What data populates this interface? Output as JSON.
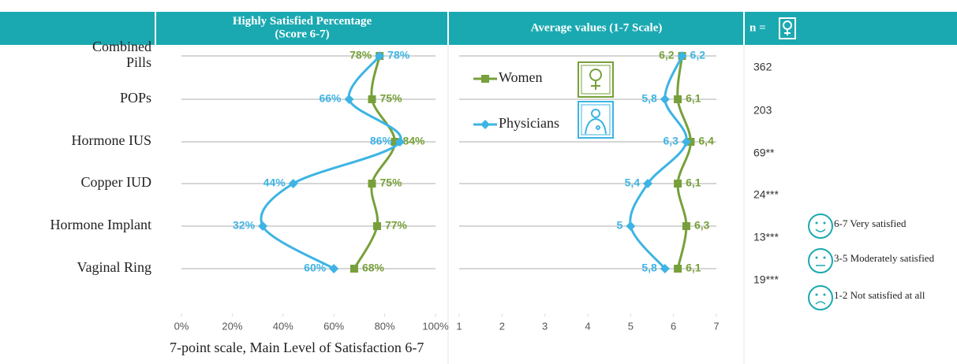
{
  "chart_data": [
    {
      "type": "line",
      "title": "Highly Satisfied Percentage\n(Score 6-7)",
      "categories": [
        "Combined\nPills",
        "POPs",
        "Hormone IUS",
        "Copper IUD",
        "Hormone Implant",
        "Vaginal Ring"
      ],
      "series": [
        {
          "color": "#77a03a",
          "marker": "square",
          "values": [
            78,
            75,
            84,
            75,
            77,
            68
          ],
          "value_labels": [
            "78%",
            "75%",
            "84%",
            "75%",
            "77%",
            "68%"
          ]
        },
        {
          "color": "#3db4e4",
          "marker": "diamond",
          "values": [
            78,
            66,
            86,
            44,
            32,
            60
          ],
          "value_labels": [
            "78%",
            "66%",
            "86%",
            "44%",
            "32%",
            "60%"
          ]
        }
      ],
      "xlim": [
        0,
        100
      ],
      "xticks": [
        {
          "value": 0,
          "label": "0%"
        },
        {
          "value": 20,
          "label": "20%"
        },
        {
          "value": 40,
          "label": "40%"
        },
        {
          "value": 60,
          "label": "60%"
        },
        {
          "value": 80,
          "label": "80%"
        },
        {
          "value": 100,
          "label": "100%"
        }
      ],
      "x_label": "7-point scale, Main Level of Satisfaction 6-7"
    },
    {
      "type": "line",
      "title": "Average values (1-7 Scale)",
      "series": [
        {
          "name": "Women",
          "color": "#77a03a",
          "marker": "square",
          "values": [
            6.2,
            6.1,
            6.4,
            6.1,
            6.3,
            6.1
          ],
          "value_labels": [
            "6,2",
            "6,1",
            "6,4",
            "6,1",
            "6,3",
            "6,1"
          ]
        },
        {
          "name": "Physicians",
          "color": "#3db4e4",
          "marker": "diamond",
          "values": [
            6.2,
            5.8,
            6.3,
            5.4,
            5,
            5.8
          ],
          "value_labels": [
            "6,2",
            "5,8",
            "6,3",
            "5,4",
            "5",
            "5,8"
          ]
        }
      ],
      "xlim": [
        1,
        7
      ],
      "xticks": [
        1,
        2,
        3,
        4,
        5,
        6,
        7
      ],
      "legend": "upper left"
    }
  ],
  "n_column": {
    "header": "n =",
    "values": [
      "362",
      "203",
      "69**",
      "24***",
      "13***",
      "19***"
    ]
  },
  "satisfaction_key": [
    "6-7 Very satisfied",
    "3-5 Moderately satisfied",
    "1-2 Not satisfied at all"
  ]
}
